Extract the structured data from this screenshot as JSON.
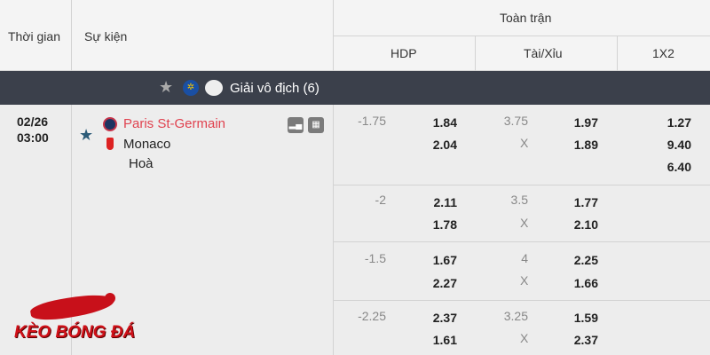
{
  "header": {
    "time": "Thời gian",
    "event": "Sự kiện",
    "full_match": "Toàn trận",
    "hdp": "HDP",
    "ou": "Tài/Xỉu",
    "x12": "1X2"
  },
  "league": {
    "name": "Giải vô địch (6)"
  },
  "match": {
    "date": "02/26",
    "time": "03:00",
    "home": "Paris St-Germain",
    "away": "Monaco",
    "draw": "Hoà",
    "home_color": "#e0424f"
  },
  "rows": [
    {
      "hdp_line": "-1.75",
      "hdp_home": "1.84",
      "hdp_away": "2.04",
      "ou_line": "3.75",
      "ou_x": "X",
      "ou_over": "1.97",
      "ou_under": "1.89",
      "x1": "1.27",
      "x2": "9.40",
      "xx": "6.40"
    },
    {
      "hdp_line": "-2",
      "hdp_home": "2.11",
      "hdp_away": "1.78",
      "ou_line": "3.5",
      "ou_x": "X",
      "ou_over": "1.77",
      "ou_under": "2.10"
    },
    {
      "hdp_line": "-1.5",
      "hdp_home": "1.67",
      "hdp_away": "2.27",
      "ou_line": "4",
      "ou_x": "X",
      "ou_over": "2.25",
      "ou_under": "1.66"
    },
    {
      "hdp_line": "-2.25",
      "hdp_home": "2.37",
      "hdp_away": "1.61",
      "ou_line": "3.25",
      "ou_x": "X",
      "ou_over": "1.59",
      "ou_under": "2.37"
    }
  ],
  "watermark": {
    "text": "KÈO BÓNG ĐÁ"
  }
}
